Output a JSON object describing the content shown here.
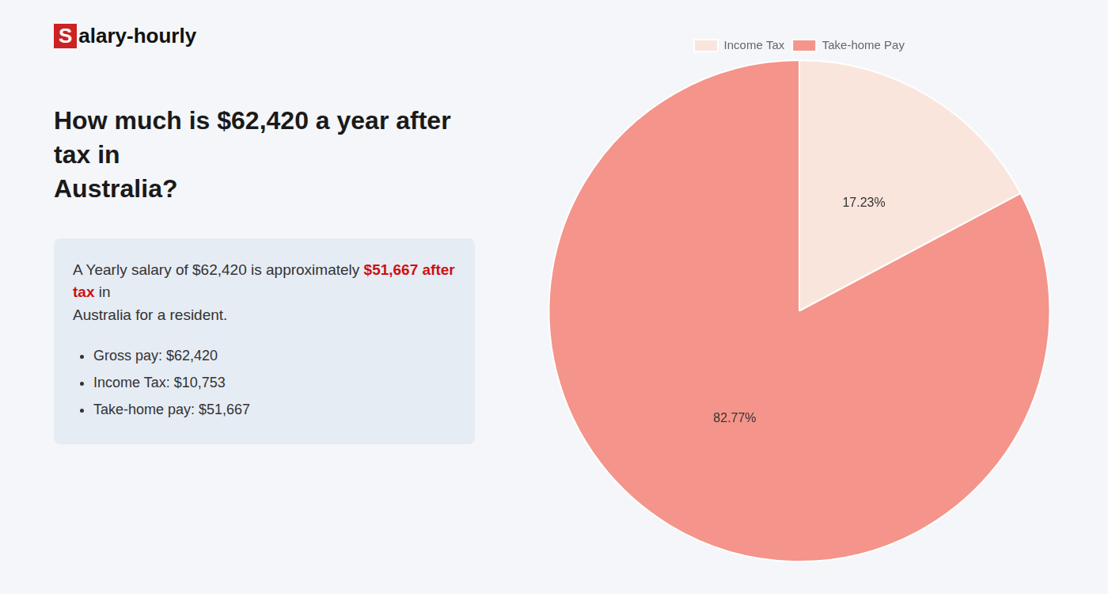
{
  "chart_data": {
    "type": "pie",
    "title": [
      "How much is $62,420 a year after tax in",
      "Australia?"
    ],
    "annotations": [
      [
        {
          "text": "S",
          "color": "#cc2222"
        },
        {
          "text": "alary-hourly"
        }
      ],
      [
        {
          "text": "A Yearly salary of $62,420 is approximately "
        },
        {
          "text": "$51,667 after tax",
          "color": "#cc1111"
        },
        {
          "text": " in"
        }
      ],
      [
        {
          "text": "Australia for a resident."
        }
      ],
      [
        {
          "text": "Gross pay: $62,420",
          "marker": "bullet"
        }
      ],
      [
        {
          "text": "Income Tax: $10,753",
          "marker": "bullet"
        }
      ],
      [
        {
          "text": "Take-home pay: $51,667",
          "marker": "bullet"
        }
      ]
    ],
    "categories": [
      "Income Tax",
      "Take-home Pay"
    ],
    "values": [
      17.23,
      82.77
    ],
    "value_labels": [
      "17.23%",
      "82.77%"
    ],
    "data_labels": true,
    "colors": [
      "#fae5dc",
      "#f4948a"
    ],
    "legend": "top"
  }
}
